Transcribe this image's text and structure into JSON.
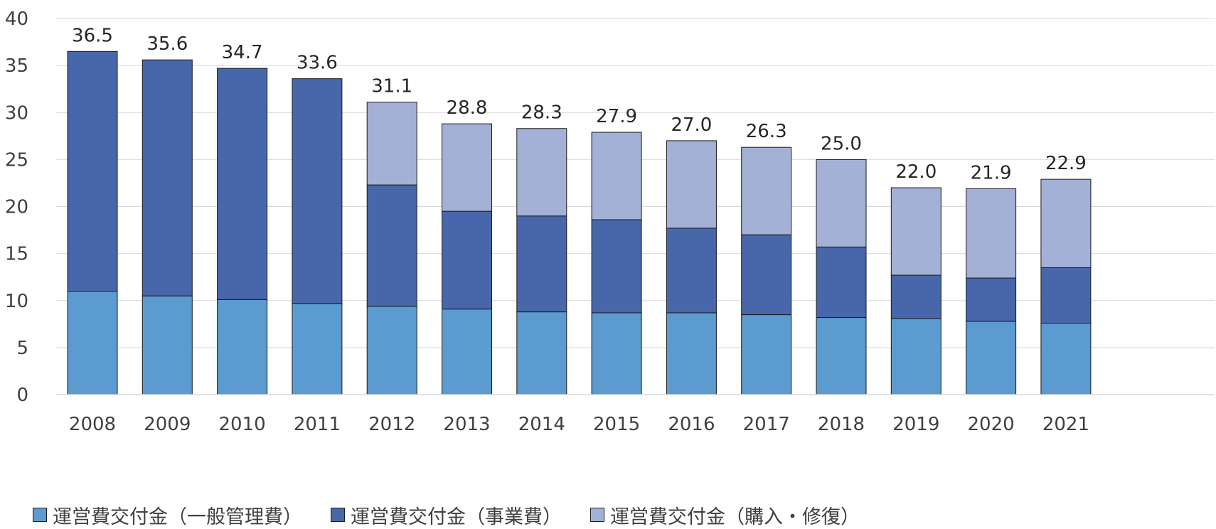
{
  "chart_data": {
    "type": "bar",
    "stacked": true,
    "categories": [
      "2008",
      "2009",
      "2010",
      "2011",
      "2012",
      "2013",
      "2014",
      "2015",
      "2016",
      "2017",
      "2018",
      "2019",
      "2020",
      "2021"
    ],
    "series": [
      {
        "name": "運営費交付金（一般管理費）",
        "color": "#5B9BD0",
        "values": [
          11.0,
          10.5,
          10.1,
          9.7,
          9.4,
          9.1,
          8.8,
          8.7,
          8.7,
          8.5,
          8.2,
          8.1,
          7.8,
          7.6
        ]
      },
      {
        "name": "運営費交付金（事業費）",
        "color": "#4866AA",
        "values": [
          25.5,
          25.1,
          24.6,
          23.9,
          12.9,
          10.4,
          10.2,
          9.9,
          9.0,
          8.5,
          7.5,
          4.6,
          4.6,
          5.9
        ]
      },
      {
        "name": "運営費交付金（購入・修復）",
        "color": "#A3B1D6",
        "values": [
          0,
          0,
          0,
          0,
          8.8,
          9.3,
          9.3,
          9.3,
          9.3,
          9.3,
          9.3,
          9.3,
          9.5,
          9.4
        ]
      }
    ],
    "totals": [
      "36.5",
      "35.6",
      "34.7",
      "33.6",
      "31.1",
      "28.8",
      "28.3",
      "27.9",
      "27.0",
      "26.3",
      "25.0",
      "22.0",
      "21.9",
      "22.9"
    ],
    "y_ticks": [
      "0",
      "5",
      "10",
      "15",
      "20",
      "25",
      "30",
      "35",
      "40"
    ],
    "ylim": [
      0,
      40
    ],
    "grid": true,
    "legend_position": "bottom"
  }
}
